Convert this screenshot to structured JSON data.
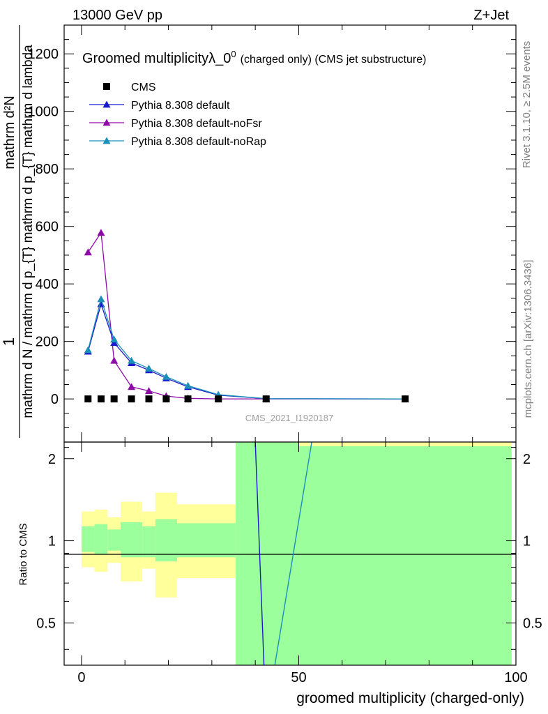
{
  "header": {
    "energy": "13000 GeV pp",
    "process": "Z+Jet"
  },
  "side_labels": {
    "rivet": "Rivet 3.1.10, ≥ 2.5M events",
    "mcplots": "mcplots.cern.ch [arXiv:1306.3436]"
  },
  "chart_data": [
    {
      "type": "line",
      "title": "Groomed multiplicityλ_0",
      "title_sup": "0",
      "title_suffix": "(charged only) (CMS jet substructure)",
      "ylabel_line1": "mathrm d N / mathrm d p_{T} mathrm d p_{T} mathrm d lambda",
      "ylabel_line2": "mathrm d²N",
      "ylabel_prefix": "1",
      "watermark": "CMS_2021_I1920187",
      "xlim": [
        -4,
        100
      ],
      "ylim": [
        -150,
        1300
      ],
      "yticks": [
        0,
        200,
        400,
        600,
        800,
        1000,
        1200
      ],
      "legend_position": "top-left",
      "series": [
        {
          "name": "CMS",
          "color": "#000000",
          "marker": "square",
          "x": [
            1.5,
            4.5,
            7.5,
            11.5,
            15.5,
            19.5,
            24.5,
            31.5,
            42.5,
            74.5
          ],
          "y": [
            0,
            0,
            0,
            0,
            0,
            0,
            0,
            0,
            0,
            0
          ]
        },
        {
          "name": "Pythia 8.308 default",
          "color": "#1a1acc",
          "marker": "triangle",
          "x": [
            1.5,
            4.5,
            7.5,
            11.5,
            15.5,
            19.5,
            24.5,
            31.5,
            42.5,
            74.5
          ],
          "y": [
            165,
            330,
            195,
            125,
            100,
            72,
            42,
            13,
            1,
            0
          ]
        },
        {
          "name": "Pythia 8.308 default-noFsr",
          "color": "#8e0aa8",
          "marker": "triangle",
          "x": [
            1.5,
            4.5,
            7.5,
            11.5,
            15.5,
            19.5,
            24.5,
            31.5,
            42.5,
            74.5
          ],
          "y": [
            510,
            578,
            133,
            42,
            28,
            10,
            2,
            0,
            0,
            0
          ]
        },
        {
          "name": "Pythia 8.308 default-noRap",
          "color": "#1a8fb8",
          "marker": "triangle",
          "x": [
            1.5,
            4.5,
            7.5,
            11.5,
            15.5,
            19.5,
            24.5,
            31.5,
            42.5,
            74.5
          ],
          "y": [
            170,
            347,
            207,
            133,
            106,
            77,
            46,
            15,
            1,
            0
          ]
        }
      ]
    },
    {
      "type": "area",
      "ylabel": "Ratio to CMS",
      "xlabel": "groomed multiplicity (charged-only)",
      "xlim": [
        -4,
        100
      ],
      "ylim": [
        0.35,
        2.3
      ],
      "yticks": [
        0.5,
        1,
        2
      ],
      "xticks": [
        0,
        50,
        100
      ],
      "bins": [
        {
          "lo": 0,
          "hi": 3,
          "stat_lo": 0.91,
          "stat_hi": 1.13,
          "tot_lo": 0.8,
          "tot_hi": 1.28
        },
        {
          "lo": 3,
          "hi": 6,
          "stat_lo": 0.89,
          "stat_hi": 1.15,
          "tot_lo": 0.77,
          "tot_hi": 1.3
        },
        {
          "lo": 6,
          "hi": 9,
          "stat_lo": 0.92,
          "stat_hi": 1.1,
          "tot_lo": 0.83,
          "tot_hi": 1.22
        },
        {
          "lo": 9,
          "hi": 14,
          "stat_lo": 0.87,
          "stat_hi": 1.17,
          "tot_lo": 0.71,
          "tot_hi": 1.39
        },
        {
          "lo": 14,
          "hi": 17,
          "stat_lo": 0.87,
          "stat_hi": 1.13,
          "tot_lo": 0.79,
          "tot_hi": 1.28
        },
        {
          "lo": 17,
          "hi": 22,
          "stat_lo": 0.84,
          "stat_hi": 1.2,
          "tot_lo": 0.62,
          "tot_hi": 1.5
        },
        {
          "lo": 22,
          "hi": 35.5,
          "stat_lo": 0.87,
          "stat_hi": 1.16,
          "tot_lo": 0.73,
          "tot_hi": 1.36
        },
        {
          "lo": 35.5,
          "hi": 50,
          "stat_lo": 0.35,
          "stat_hi": 2.3,
          "tot_lo": 0.35,
          "tot_hi": 2.3
        },
        {
          "lo": 50,
          "hi": 99,
          "stat_lo": 0.35,
          "stat_hi": 2.22,
          "tot_lo": 0.35,
          "tot_hi": 2.3
        }
      ],
      "ratio_lines": [
        {
          "name": "Pythia 8.308 default",
          "color": "#1a1acc",
          "points": [
            [
              40,
              2.3
            ],
            [
              42,
              0.35
            ]
          ]
        },
        {
          "name": "Pythia 8.308 default-noRap",
          "color": "#1a8fb8",
          "points": [
            [
              44.5,
              0.35
            ],
            [
              53,
              2.3
            ]
          ]
        }
      ],
      "colors": {
        "stat": "#9bff9b",
        "total": "#ffff9b",
        "reference": "#000000"
      }
    }
  ]
}
